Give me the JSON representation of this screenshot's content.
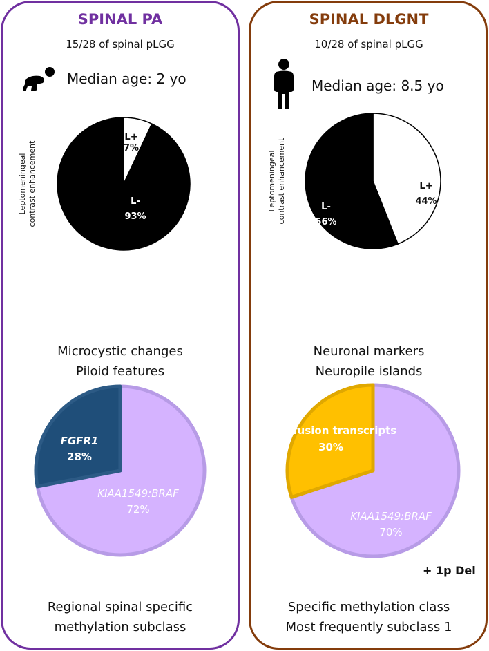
{
  "colors": {
    "pa": "#7030A0",
    "dlgnt": "#843C0C",
    "braf": "#D5B3FF",
    "braf_edge": "#B79BE6",
    "fgfr1": "#1F4E79",
    "fusion": "#FFC000",
    "fusion_edge": "#E0A800"
  },
  "left": {
    "title": "SPINAL PA",
    "count": "15/28 of spinal pLGG",
    "age_icon": "crawling-baby-icon",
    "median_age": "Median age: 2 yo",
    "axis_label": [
      "Leptomeningeal",
      "contrast enhancement"
    ],
    "features": [
      "Microcystic changes",
      "Piloid features"
    ],
    "methylation": [
      "Regional spinal specific",
      "methylation subclass"
    ]
  },
  "right": {
    "title": "SPINAL DLGNT",
    "count": "10/28 of spinal pLGG",
    "age_icon": "person-icon",
    "median_age": "Median age: 8.5 yo",
    "axis_label": [
      "Leptomeningeal",
      "contrast enhancement"
    ],
    "features": [
      "Neuronal markers",
      "Neuropile islands"
    ],
    "extra": "+ 1p Del",
    "methylation": [
      "Specific methylation class",
      "Most frequently subclass 1"
    ]
  },
  "chart_data": [
    {
      "type": "pie",
      "name": "PA leptomeningeal enhancement",
      "slices": [
        {
          "label": "L+",
          "value": 7,
          "text": "7%"
        },
        {
          "label": "L-",
          "value": 93,
          "text": "93%"
        }
      ]
    },
    {
      "type": "pie",
      "name": "DLGNT leptomeningeal enhancement",
      "slices": [
        {
          "label": "L+",
          "value": 44,
          "text": "44%"
        },
        {
          "label": "L-",
          "value": 56,
          "text": "56%"
        }
      ]
    },
    {
      "type": "pie",
      "name": "PA alterations",
      "slices": [
        {
          "label": "KIAA1549:BRAF",
          "value": 72,
          "text": "72%"
        },
        {
          "label": "FGFR1",
          "value": 28,
          "text": "28%"
        }
      ]
    },
    {
      "type": "pie",
      "name": "DLGNT alterations",
      "slices": [
        {
          "label": "KIAA1549:BRAF",
          "value": 70,
          "text": "70%"
        },
        {
          "label": "rare fusion transcripts",
          "value": 30,
          "text": "30%"
        }
      ]
    }
  ]
}
